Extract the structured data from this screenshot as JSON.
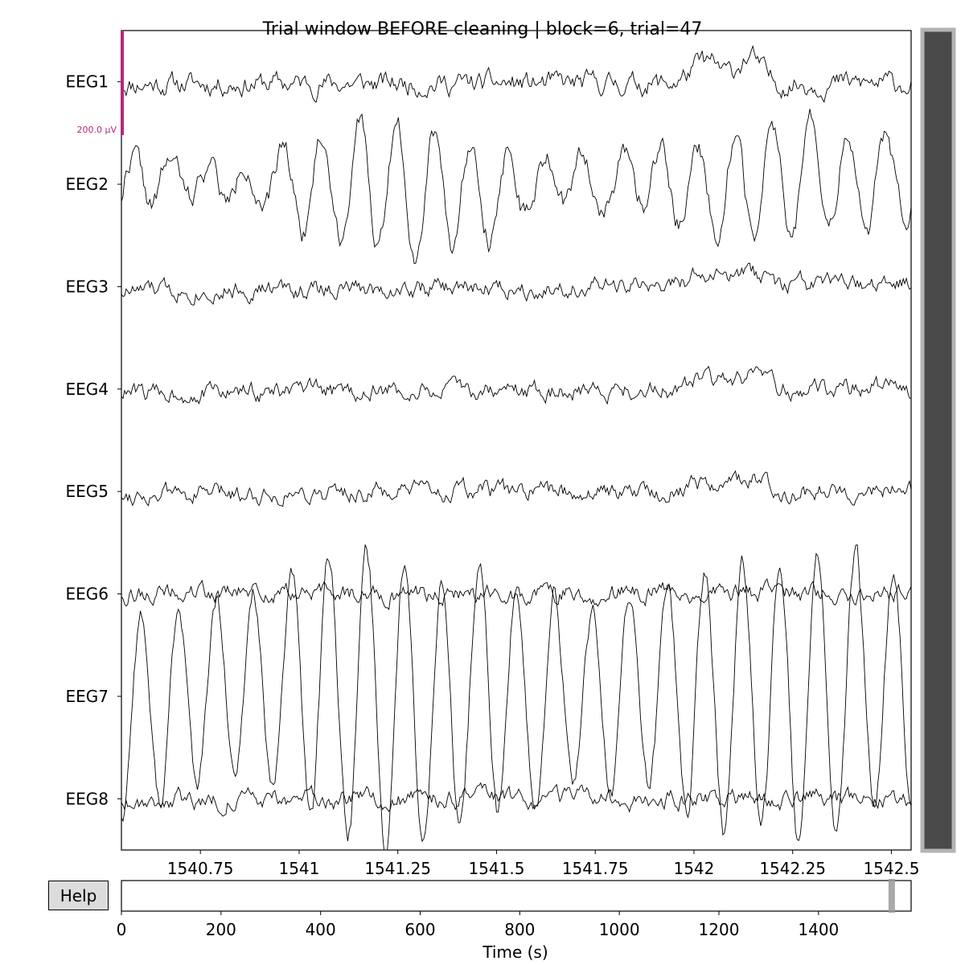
{
  "title": "Trial window BEFORE cleaning | block=6, trial=47",
  "help_label": "Help",
  "scale_bar_label": "200.0 µV",
  "colors": {
    "trace": "#000000",
    "scale_bar": "#b5287a",
    "scrollbar_thumb": "#4a4a4a",
    "scrollbar_border": "#b4b4b4",
    "help_bg": "#dcdcdc"
  },
  "chart_data": [
    {
      "type": "line",
      "title": "Trial window BEFORE cleaning | block=6, trial=47",
      "xlabel": "",
      "ylabel": "",
      "xlim": [
        1540.55,
        1542.55
      ],
      "x_ticks": [
        1540.75,
        1541,
        1541.25,
        1541.5,
        1541.75,
        1542,
        1542.25,
        1542.5
      ],
      "x_tick_labels": [
        "1540.75",
        "1541",
        "1541.25",
        "1541.5",
        "1541.75",
        "1542",
        "1542.25",
        "1542.5"
      ],
      "channels": [
        "EEG1",
        "EEG2",
        "EEG3",
        "EEG4",
        "EEG5",
        "EEG6",
        "EEG7",
        "EEG8"
      ],
      "scale_uV": 200,
      "series": [
        {
          "name": "EEG1",
          "amp": 0.35,
          "alpha": 0.3,
          "osc": [],
          "bumps": [
            [
              1542.03,
              0.05,
              1.2
            ],
            [
              1542.14,
              0.04,
              1.5
            ]
          ],
          "seed": 11
        },
        {
          "name": "EEG2",
          "amp": 0.8,
          "alpha": 0.15,
          "osc": [
            [
              10.5,
              1.0
            ]
          ],
          "beat": [
            1.0,
            0.5
          ],
          "bumps": [],
          "seed": 22
        },
        {
          "name": "EEG3",
          "amp": 0.3,
          "alpha": 0.3,
          "osc": [],
          "trend": 0.4,
          "bumps": [
            [
              1542.03,
              0.06,
              0.7
            ],
            [
              1542.14,
              0.05,
              0.8
            ]
          ],
          "seed": 33
        },
        {
          "name": "EEG4",
          "amp": 0.3,
          "alpha": 0.3,
          "osc": [],
          "trend": 0.3,
          "bumps": [
            [
              1542.03,
              0.06,
              0.6
            ],
            [
              1542.14,
              0.05,
              0.7
            ]
          ],
          "seed": 44
        },
        {
          "name": "EEG5",
          "amp": 0.3,
          "alpha": 0.3,
          "osc": [],
          "trend": 0.3,
          "bumps": [
            [
              1542.03,
              0.06,
              0.6
            ],
            [
              1542.14,
              0.05,
              0.7
            ]
          ],
          "seed": 55
        },
        {
          "name": "EEG6",
          "amp": 0.3,
          "alpha": 0.3,
          "osc": [],
          "bumps": [],
          "seed": 66
        },
        {
          "name": "EEG7",
          "amp": 2.3,
          "alpha": 0.05,
          "osc": [
            [
              10.5,
              1.0
            ]
          ],
          "beat": [
            1.0,
            0.25
          ],
          "bumps": [],
          "seed": 77
        },
        {
          "name": "EEG8",
          "amp": 0.3,
          "alpha": 0.3,
          "osc": [],
          "bumps": [],
          "seed": 88
        }
      ]
    },
    {
      "type": "line",
      "title": "",
      "xlabel": "Time (s)",
      "xlim": [
        0,
        1586
      ],
      "x_ticks": [
        0,
        200,
        400,
        600,
        800,
        1000,
        1200,
        1400
      ],
      "x_tick_labels": [
        "0",
        "200",
        "400",
        "600",
        "800",
        "1000",
        "1200",
        "1400"
      ],
      "window_start_s": 1540.55,
      "window_end_s": 1542.55
    }
  ]
}
